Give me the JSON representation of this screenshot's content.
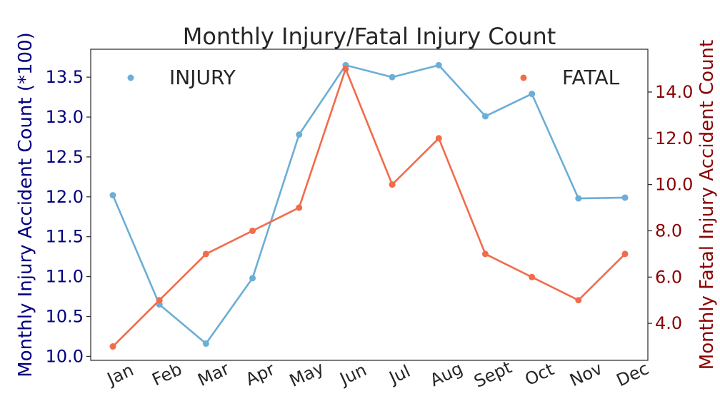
{
  "chart_data": {
    "type": "line",
    "title": "Monthly Injury/Fatal Injury Count",
    "categories": [
      "Jan",
      "Feb",
      "Mar",
      "Apr",
      "May",
      "Jun",
      "Jul",
      "Aug",
      "Sept",
      "Oct",
      "Nov",
      "Dec"
    ],
    "y_left": {
      "label": "Monthly Injury Accident Count (*100)",
      "ylim": [
        9.95,
        13.85
      ],
      "ticks": [
        "10.0",
        "10.5",
        "11.0",
        "11.5",
        "12.0",
        "12.5",
        "13.0",
        "13.5"
      ],
      "color": "#000080"
    },
    "y_right": {
      "label": "Monthly Fatal Injury Accident Count",
      "ylim": [
        2.4,
        15.85
      ],
      "ticks": [
        "4.0",
        "6.0",
        "8.0",
        "10.0",
        "12.0",
        "14.0"
      ],
      "color": "#8b0000"
    },
    "series": [
      {
        "name": "INJURY",
        "axis": "left",
        "color": "#6baed6",
        "values": [
          12.02,
          10.65,
          10.16,
          10.98,
          12.78,
          13.65,
          13.5,
          13.65,
          13.01,
          13.29,
          11.98,
          11.99
        ]
      },
      {
        "name": "FATAL",
        "axis": "right",
        "color": "#f26b4a",
        "values": [
          3,
          5,
          7,
          8,
          9,
          15,
          10,
          12,
          7,
          6,
          5,
          7
        ]
      }
    ],
    "grid": false,
    "legend": [
      "top-left",
      "top-right"
    ]
  }
}
